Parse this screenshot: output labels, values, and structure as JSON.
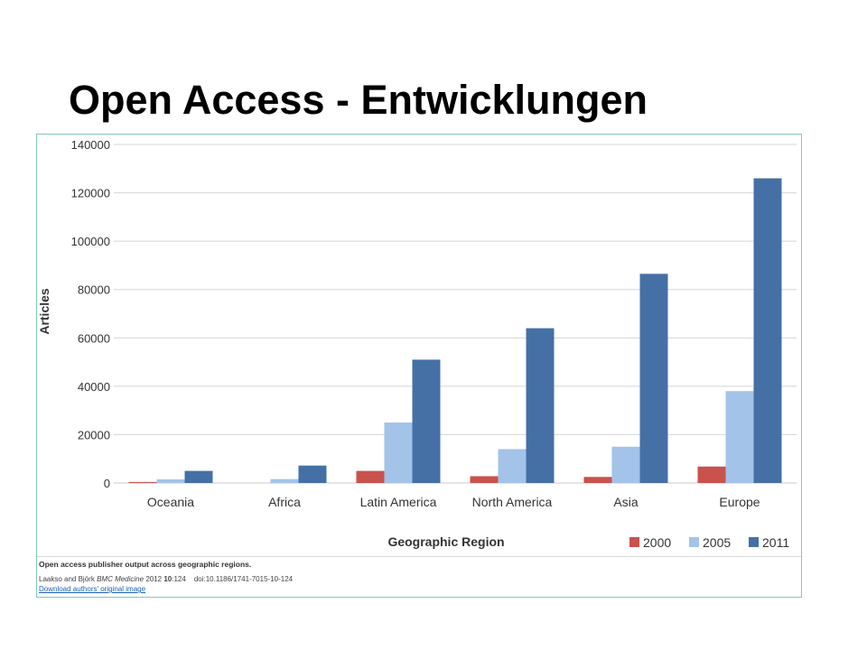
{
  "slide": {
    "title": "Open Access - Entwicklungen"
  },
  "caption": {
    "title": "Open access publisher output across geographic regions.",
    "authors": "Laakso and Björk",
    "journal": "BMC Medicine",
    "year_text": "2012",
    "volume": "10",
    "pages": ":124",
    "doi": "doi:10.1186/1741-7015-10-124",
    "download_link": "Download authors' original image"
  },
  "colors": {
    "frame_border": "#7fc9b5",
    "grid": "#d4d4d4",
    "axis": "#c8c8c8",
    "text": "#333333"
  },
  "chart_data": {
    "type": "bar",
    "title": "",
    "xlabel": "Geographic Region",
    "ylabel": "Articles",
    "categories": [
      "Oceania",
      "Africa",
      "Latin America",
      "North America",
      "Asia",
      "Europe"
    ],
    "series": [
      {
        "name": "2000",
        "color": "#c9524c",
        "values": [
          400,
          0,
          5000,
          2800,
          2500,
          6800
        ]
      },
      {
        "name": "2005",
        "color": "#a3c3e8",
        "values": [
          1500,
          1600,
          25000,
          14000,
          15000,
          38000
        ]
      },
      {
        "name": "2011",
        "color": "#4470a6",
        "values": [
          5000,
          7200,
          51000,
          64000,
          86500,
          126000
        ]
      }
    ],
    "ylim": [
      0,
      140000
    ],
    "yticks": [
      0,
      20000,
      40000,
      60000,
      80000,
      100000,
      120000,
      140000
    ],
    "grid": true,
    "legend_position": "bottom-right"
  }
}
